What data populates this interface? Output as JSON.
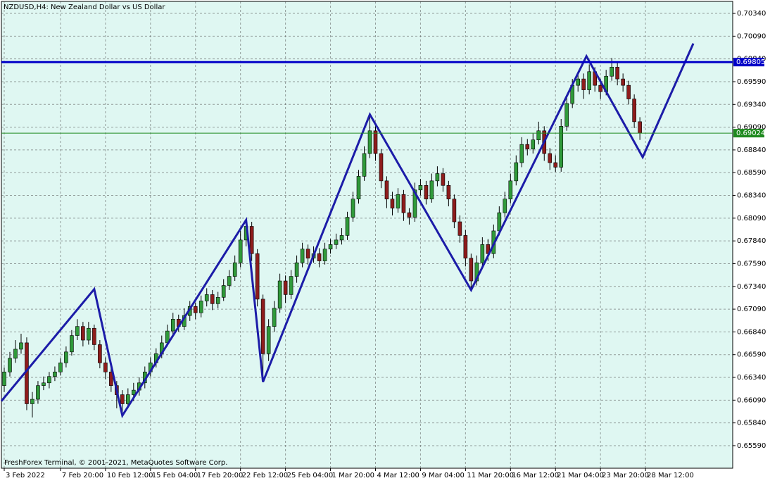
{
  "chart_data": {
    "type": "candlestick",
    "title": "NZDUSD,H4:  New Zealand Dollar vs US Dollar",
    "footer": "FreshForex Terminal, © 2001-2021, MetaQuotes Software Corp.",
    "up_color": "#2f9a3a",
    "down_color": "#8e1c1c",
    "background": "#dff7f2",
    "grid": true,
    "xlim": [
      -0.5,
      129.5
    ],
    "xticks": [
      {
        "value": 0,
        "label": "3 Feb 2022"
      },
      {
        "value": 10,
        "label": "7 Feb 20:00"
      },
      {
        "value": 18,
        "label": "10 Feb 12:00"
      },
      {
        "value": 26,
        "label": "15 Feb 04:00"
      },
      {
        "value": 34,
        "label": "17 Feb 20:00"
      },
      {
        "value": 42,
        "label": "22 Feb 12:00"
      },
      {
        "value": 50,
        "label": "25 Feb 04:00"
      },
      {
        "value": 58,
        "label": "1 Mar 20:00"
      },
      {
        "value": 66,
        "label": "4 Mar 12:00"
      },
      {
        "value": 74,
        "label": "9 Mar 04:00"
      },
      {
        "value": 82,
        "label": "11 Mar 20:00"
      },
      {
        "value": 90,
        "label": "16 Mar 12:00"
      },
      {
        "value": 98,
        "label": "21 Mar 04:00"
      },
      {
        "value": 106,
        "label": "23 Mar 20:00"
      },
      {
        "value": 114,
        "label": "28 Mar 12:00"
      }
    ],
    "ylim": [
      0.65342,
      0.70472
    ],
    "yticks": [
      {
        "value": 0.7034,
        "label": "0.70340"
      },
      {
        "value": 0.7009,
        "label": "0.70090"
      },
      {
        "value": 0.6984,
        "label": "0.69840"
      },
      {
        "value": 0.6959,
        "label": "0.69590"
      },
      {
        "value": 0.6934,
        "label": "0.69340"
      },
      {
        "value": 0.6909,
        "label": "0.69090"
      },
      {
        "value": 0.6884,
        "label": "0.68840"
      },
      {
        "value": 0.6859,
        "label": "0.68590"
      },
      {
        "value": 0.6834,
        "label": "0.68340"
      },
      {
        "value": 0.6809,
        "label": "0.68090"
      },
      {
        "value": 0.6784,
        "label": "0.67840"
      },
      {
        "value": 0.6759,
        "label": "0.67590"
      },
      {
        "value": 0.6734,
        "label": "0.67340"
      },
      {
        "value": 0.6709,
        "label": "0.67090"
      },
      {
        "value": 0.6684,
        "label": "0.66840"
      },
      {
        "value": 0.6659,
        "label": "0.66590"
      },
      {
        "value": 0.6634,
        "label": "0.66340"
      },
      {
        "value": 0.6609,
        "label": "0.66090"
      },
      {
        "value": 0.6584,
        "label": "0.65840"
      },
      {
        "value": 0.6559,
        "label": "0.65590"
      }
    ],
    "open": [
      0.6625,
      0.664,
      0.6655,
      0.6665,
      0.6672,
      0.6605,
      0.661,
      0.6625,
      0.6628,
      0.6635,
      0.664,
      0.665,
      0.6662,
      0.668,
      0.669,
      0.6675,
      0.6688,
      0.667,
      0.665,
      0.664,
      0.6625,
      0.6615,
      0.6605,
      0.6615,
      0.662,
      0.6628,
      0.664,
      0.665,
      0.666,
      0.6672,
      0.6685,
      0.6698,
      0.669,
      0.6702,
      0.6712,
      0.6705,
      0.6718,
      0.6725,
      0.6715,
      0.6722,
      0.6735,
      0.6745,
      0.676,
      0.6785,
      0.68,
      0.677,
      0.672,
      0.666,
      0.669,
      0.671,
      0.674,
      0.6725,
      0.6745,
      0.676,
      0.6775,
      0.6765,
      0.677,
      0.6762,
      0.6775,
      0.678,
      0.6785,
      0.679,
      0.681,
      0.683,
      0.6855,
      0.688,
      0.6905,
      0.688,
      0.685,
      0.683,
      0.682,
      0.6835,
      0.6815,
      0.681,
      0.684,
      0.6845,
      0.683,
      0.685,
      0.6858,
      0.6845,
      0.683,
      0.6805,
      0.679,
      0.6765,
      0.674,
      0.676,
      0.678,
      0.677,
      0.6795,
      0.6815,
      0.683,
      0.685,
      0.687,
      0.689,
      0.6885,
      0.6895,
      0.6905,
      0.688,
      0.687,
      0.6865,
      0.691,
      0.6935,
      0.6955,
      0.6962,
      0.695,
      0.697,
      0.6955,
      0.6948,
      0.6965,
      0.6975,
      0.6962,
      0.6955,
      0.694,
      0.6915
    ],
    "high": [
      0.6645,
      0.6662,
      0.6675,
      0.6682,
      0.6678,
      0.6618,
      0.663,
      0.6635,
      0.664,
      0.6646,
      0.6655,
      0.6668,
      0.6686,
      0.6698,
      0.6695,
      0.6695,
      0.6692,
      0.6675,
      0.6656,
      0.6645,
      0.663,
      0.662,
      0.6622,
      0.6628,
      0.6634,
      0.6646,
      0.6656,
      0.6666,
      0.668,
      0.6692,
      0.6705,
      0.6703,
      0.671,
      0.6718,
      0.6716,
      0.6724,
      0.6732,
      0.673,
      0.6728,
      0.6742,
      0.6752,
      0.6768,
      0.6795,
      0.6808,
      0.6805,
      0.6775,
      0.6725,
      0.6698,
      0.6718,
      0.6748,
      0.6746,
      0.6752,
      0.6768,
      0.6782,
      0.678,
      0.6778,
      0.6776,
      0.6782,
      0.6786,
      0.6792,
      0.6798,
      0.6816,
      0.6838,
      0.6862,
      0.6888,
      0.692,
      0.691,
      0.6885,
      0.6855,
      0.6838,
      0.6842,
      0.684,
      0.682,
      0.6848,
      0.6852,
      0.685,
      0.6858,
      0.6866,
      0.6864,
      0.685,
      0.6835,
      0.6812,
      0.6796,
      0.677,
      0.6768,
      0.6788,
      0.6786,
      0.6802,
      0.6822,
      0.6838,
      0.6858,
      0.6878,
      0.6898,
      0.6896,
      0.6902,
      0.6915,
      0.691,
      0.6886,
      0.6878,
      0.6918,
      0.6942,
      0.6962,
      0.697,
      0.6968,
      0.6978,
      0.6975,
      0.6962,
      0.6972,
      0.6985,
      0.698,
      0.6968,
      0.696,
      0.6945,
      0.692
    ],
    "low": [
      0.6618,
      0.6635,
      0.665,
      0.666,
      0.6598,
      0.659,
      0.6605,
      0.662,
      0.6622,
      0.663,
      0.6636,
      0.6645,
      0.6658,
      0.6675,
      0.6668,
      0.667,
      0.6664,
      0.6644,
      0.6632,
      0.6618,
      0.66,
      0.6595,
      0.66,
      0.6608,
      0.6614,
      0.6622,
      0.6635,
      0.6645,
      0.6655,
      0.6668,
      0.668,
      0.6684,
      0.6686,
      0.6696,
      0.6698,
      0.67,
      0.6712,
      0.6708,
      0.671,
      0.6718,
      0.673,
      0.674,
      0.6755,
      0.6778,
      0.6762,
      0.6712,
      0.663,
      0.6652,
      0.6684,
      0.6705,
      0.6716,
      0.672,
      0.6738,
      0.6755,
      0.6758,
      0.676,
      0.6755,
      0.6758,
      0.677,
      0.6775,
      0.678,
      0.6785,
      0.6805,
      0.6825,
      0.685,
      0.6875,
      0.6872,
      0.6842,
      0.682,
      0.6812,
      0.6815,
      0.6806,
      0.6802,
      0.6805,
      0.6834,
      0.6824,
      0.6826,
      0.6844,
      0.6838,
      0.6822,
      0.6798,
      0.6782,
      0.6756,
      0.673,
      0.6735,
      0.6755,
      0.6762,
      0.6765,
      0.679,
      0.681,
      0.6825,
      0.6845,
      0.6865,
      0.6878,
      0.688,
      0.689,
      0.6872,
      0.6862,
      0.686,
      0.686,
      0.6905,
      0.693,
      0.6948,
      0.694,
      0.6945,
      0.6948,
      0.694,
      0.6944,
      0.696,
      0.6955,
      0.6948,
      0.6934,
      0.6908,
      0.6895
    ],
    "close": [
      0.664,
      0.6655,
      0.6665,
      0.6672,
      0.6605,
      0.661,
      0.6625,
      0.6628,
      0.6635,
      0.664,
      0.665,
      0.6662,
      0.668,
      0.669,
      0.6675,
      0.6688,
      0.667,
      0.665,
      0.664,
      0.6625,
      0.6615,
      0.6605,
      0.6615,
      0.662,
      0.6628,
      0.664,
      0.665,
      0.666,
      0.6672,
      0.6685,
      0.6698,
      0.669,
      0.6702,
      0.6712,
      0.6705,
      0.6718,
      0.6725,
      0.6715,
      0.6722,
      0.6735,
      0.6745,
      0.676,
      0.6785,
      0.68,
      0.677,
      0.672,
      0.666,
      0.669,
      0.671,
      0.674,
      0.6725,
      0.6745,
      0.676,
      0.6775,
      0.6765,
      0.677,
      0.6762,
      0.6775,
      0.678,
      0.6785,
      0.679,
      0.681,
      0.683,
      0.6855,
      0.688,
      0.6905,
      0.688,
      0.685,
      0.683,
      0.682,
      0.6835,
      0.6815,
      0.681,
      0.684,
      0.6845,
      0.683,
      0.685,
      0.6858,
      0.6845,
      0.683,
      0.6805,
      0.679,
      0.6765,
      0.674,
      0.676,
      0.678,
      0.677,
      0.6795,
      0.6815,
      0.683,
      0.685,
      0.687,
      0.689,
      0.6885,
      0.6895,
      0.6905,
      0.688,
      0.687,
      0.6865,
      0.691,
      0.6935,
      0.6955,
      0.6962,
      0.695,
      0.697,
      0.6955,
      0.6948,
      0.6965,
      0.6975,
      0.6962,
      0.6955,
      0.694,
      0.6915,
      0.69024
    ],
    "zigzag": {
      "color": "#1c1ca8",
      "x": [
        -0.5,
        16,
        21,
        43,
        46,
        65,
        83,
        103.5,
        113.5,
        122.5
      ],
      "y": [
        0.6608,
        0.6731,
        0.6592,
        0.6807,
        0.6629,
        0.6923,
        0.673,
        0.6987,
        0.6876,
        0.7001
      ]
    },
    "price_levels": [
      {
        "value": 0.69805,
        "color": "#0000c8"
      },
      {
        "value": 0.69024,
        "color": "#1f8a1f"
      }
    ]
  }
}
